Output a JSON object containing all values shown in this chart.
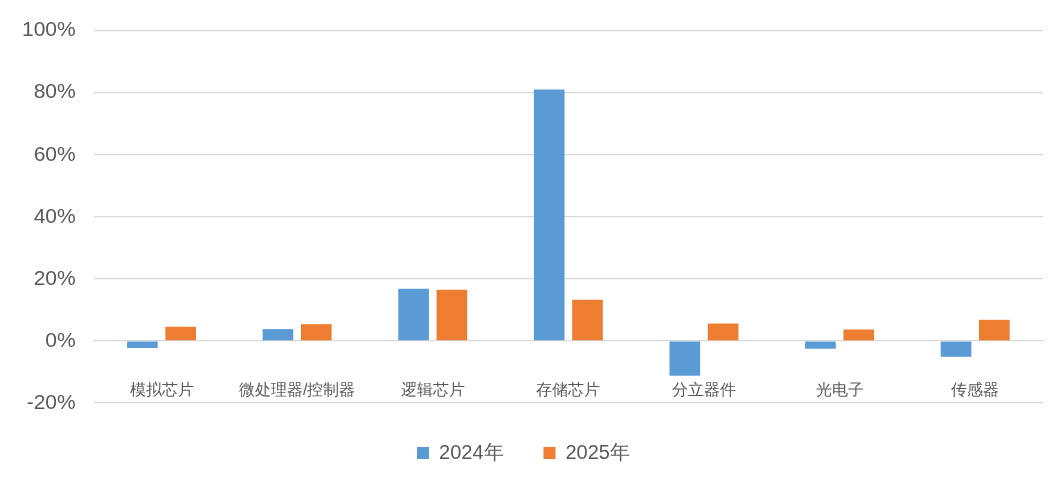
{
  "chart_data": {
    "type": "bar",
    "categories": [
      "模拟芯片",
      "微处理器/控制器",
      "逻辑芯片",
      "存储芯片",
      "分立器件",
      "光电子",
      "传感器"
    ],
    "series": [
      {
        "name": "2024年",
        "color": "#5b9bd5",
        "values": [
          -2.3,
          3.8,
          16.8,
          81.0,
          -11.2,
          -2.5,
          -5.1
        ]
      },
      {
        "name": "2025年",
        "color": "#ed7d31",
        "values": [
          4.6,
          5.4,
          16.5,
          13.3,
          5.6,
          3.7,
          6.8
        ]
      }
    ],
    "ylim": [
      -20,
      100
    ],
    "yticks": [
      {
        "value": -20,
        "label": "-20%"
      },
      {
        "value": 0,
        "label": "0%"
      },
      {
        "value": 20,
        "label": "20%"
      },
      {
        "value": 40,
        "label": "40%"
      },
      {
        "value": 60,
        "label": "60%"
      },
      {
        "value": 80,
        "label": "80%"
      },
      {
        "value": 100,
        "label": "100%"
      }
    ],
    "grid": "y",
    "legend": "bottom"
  }
}
